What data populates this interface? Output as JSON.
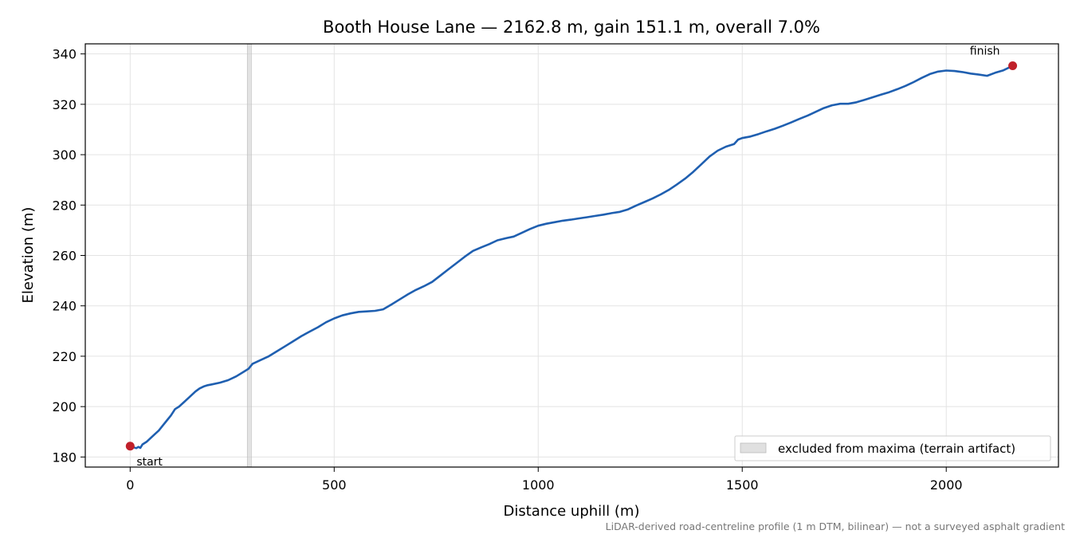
{
  "chart_data": {
    "type": "line",
    "title": "Booth House Lane — 2162.8 m, gain 151.1 m, overall 7.0%",
    "xlabel": "Distance uphill (m)",
    "ylabel": "Elevation (m)",
    "xlim": [
      -110,
      2275
    ],
    "ylim": [
      176,
      344
    ],
    "xticks": [
      0,
      500,
      1000,
      1500,
      2000
    ],
    "yticks": [
      180,
      200,
      220,
      240,
      260,
      280,
      300,
      320,
      340
    ],
    "grid": true,
    "series": [
      {
        "color": "#1f5fb0",
        "x": [
          0,
          15,
          20,
          25,
          30,
          40,
          50,
          60,
          70,
          80,
          90,
          100,
          110,
          120,
          130,
          140,
          150,
          160,
          170,
          180,
          190,
          200,
          220,
          240,
          260,
          280,
          290,
          300,
          320,
          340,
          360,
          380,
          400,
          420,
          440,
          460,
          480,
          500,
          520,
          540,
          560,
          580,
          600,
          620,
          640,
          660,
          680,
          700,
          720,
          740,
          760,
          780,
          800,
          820,
          840,
          860,
          880,
          900,
          920,
          940,
          960,
          980,
          1000,
          1020,
          1040,
          1060,
          1080,
          1100,
          1120,
          1140,
          1160,
          1180,
          1200,
          1220,
          1240,
          1260,
          1280,
          1300,
          1320,
          1340,
          1360,
          1380,
          1400,
          1420,
          1440,
          1460,
          1480,
          1490,
          1500,
          1520,
          1540,
          1560,
          1580,
          1600,
          1620,
          1640,
          1660,
          1680,
          1700,
          1720,
          1740,
          1760,
          1780,
          1800,
          1820,
          1840,
          1860,
          1880,
          1900,
          1920,
          1940,
          1960,
          1980,
          2000,
          2020,
          2040,
          2060,
          2080,
          2100,
          2120,
          2140,
          2162.8
        ],
        "y": [
          184.3,
          183.5,
          184.0,
          183.6,
          185.0,
          186.0,
          187.5,
          189.0,
          190.5,
          192.5,
          194.5,
          196.5,
          199.0,
          200.0,
          201.5,
          203.0,
          204.5,
          206.0,
          207.2,
          208.0,
          208.5,
          208.8,
          209.5,
          210.5,
          212.0,
          214.0,
          215.0,
          217.0,
          218.5,
          220.0,
          222.0,
          224.0,
          226.0,
          228.0,
          229.8,
          231.5,
          233.5,
          235.0,
          236.2,
          237.0,
          237.6,
          237.8,
          238.0,
          238.6,
          240.5,
          242.5,
          244.5,
          246.3,
          247.8,
          249.5,
          252.0,
          254.5,
          257.0,
          259.5,
          261.8,
          263.2,
          264.5,
          266.0,
          266.8,
          267.5,
          269.0,
          270.5,
          271.8,
          272.6,
          273.2,
          273.8,
          274.2,
          274.7,
          275.2,
          275.7,
          276.2,
          276.8,
          277.3,
          278.3,
          279.8,
          281.2,
          282.6,
          284.2,
          286.0,
          288.2,
          290.5,
          293.2,
          296.2,
          299.3,
          301.6,
          303.2,
          304.2,
          306.0,
          306.6,
          307.2,
          308.2,
          309.3,
          310.3,
          311.5,
          312.8,
          314.2,
          315.5,
          317.0,
          318.5,
          319.6,
          320.2,
          320.2,
          320.8,
          321.8,
          322.8,
          323.8,
          324.8,
          326.0,
          327.3,
          328.8,
          330.5,
          332.0,
          333.0,
          333.4,
          333.2,
          332.8,
          332.2,
          331.8,
          331.3,
          332.5,
          333.5,
          335.3
        ]
      }
    ],
    "markers": [
      {
        "label": "start",
        "x": 0,
        "y": 184.3,
        "color": "#c0202a"
      },
      {
        "label": "finish",
        "x": 2162.8,
        "y": 335.3,
        "color": "#c0202a"
      }
    ],
    "excluded_band": {
      "x": [
        287,
        297
      ],
      "color": "#cccccc"
    },
    "legend": {
      "entries": [
        "excluded from maxima (terrain artifact)"
      ],
      "position": "lower right"
    },
    "footnote": "LiDAR-derived road-centreline profile (1 m DTM, bilinear) — not a surveyed asphalt gradient"
  }
}
